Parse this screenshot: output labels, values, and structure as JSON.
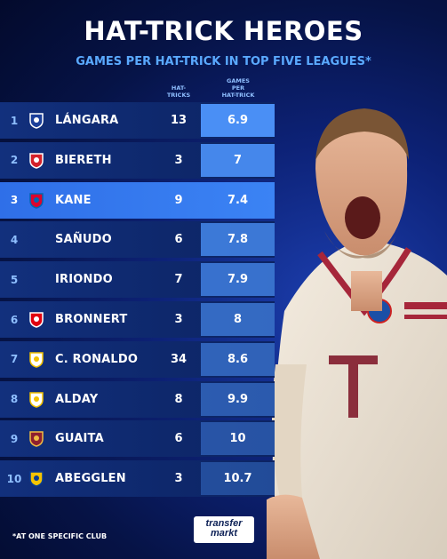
{
  "title": "HAT-TRICK HEROES",
  "subtitle": "GAMES PER HAT-TRICK IN TOP FIVE LEAGUES*",
  "footnote": "*AT ONE SPECIFIC CLUB",
  "logo": {
    "line1": "transfer",
    "line2": "markt"
  },
  "columns": {
    "hat_tricks": "HAT-\nTRICKS",
    "games_per": "GAMES\nPER\nHAT-TRICK"
  },
  "colors": {
    "accent": "#5aa9ff",
    "highlight": "#3b83f4",
    "bar": "#4a8ff5"
  },
  "rows": [
    {
      "rank": "1",
      "player": "LÁNGARA",
      "hat_tricks": "13",
      "games_per": "6.9",
      "crest": "real-oviedo-crest-icon"
    },
    {
      "rank": "2",
      "player": "BIERETH",
      "hat_tricks": "3",
      "games_per": "7",
      "crest": "monaco-crest-icon"
    },
    {
      "rank": "3",
      "player": "KANE",
      "hat_tricks": "9",
      "games_per": "7.4",
      "crest": "bayern-crest-icon"
    },
    {
      "rank": "4",
      "player": "SAÑUDO",
      "hat_tricks": "6",
      "games_per": "7.8",
      "crest": ""
    },
    {
      "rank": "5",
      "player": "IRIONDO",
      "hat_tricks": "7",
      "games_per": "7.9",
      "crest": ""
    },
    {
      "rank": "6",
      "player": "BRONNERT",
      "hat_tricks": "3",
      "games_per": "8",
      "crest": "eintracht-frankfurt-crest-icon"
    },
    {
      "rank": "7",
      "player": "C. RONALDO",
      "hat_tricks": "34",
      "games_per": "8.6",
      "crest": "real-madrid-crest-icon"
    },
    {
      "rank": "8",
      "player": "ALDAY",
      "hat_tricks": "8",
      "games_per": "9.9",
      "crest": "real-madrid-crest-icon"
    },
    {
      "rank": "9",
      "player": "GUAITA",
      "hat_tricks": "6",
      "games_per": "10",
      "crest": "as-roma-crest-icon"
    },
    {
      "rank": "10",
      "player": "ABEGGLEN",
      "hat_tricks": "3",
      "games_per": "10.7",
      "crest": "sochaux-crest-icon"
    }
  ],
  "chart_data": {
    "type": "table",
    "title": "HAT-TRICK HEROES",
    "subtitle": "GAMES PER HAT-TRICK IN TOP FIVE LEAGUES*",
    "columns": [
      "HAT-TRICKS",
      "GAMES PER HAT-TRICK"
    ],
    "categories": [
      "LÁNGARA",
      "BIERETH",
      "KANE",
      "SAÑUDO",
      "IRIONDO",
      "BRONNERT",
      "C. RONALDO",
      "ALDAY",
      "GUAITA",
      "ABEGGLEN"
    ],
    "series": [
      {
        "name": "HAT-TRICKS",
        "values": [
          13,
          3,
          9,
          6,
          7,
          3,
          34,
          8,
          6,
          3
        ]
      },
      {
        "name": "GAMES PER HAT-TRICK",
        "values": [
          6.9,
          7,
          7.4,
          7.8,
          7.9,
          8,
          8.6,
          9.9,
          10,
          10.7
        ]
      }
    ]
  }
}
